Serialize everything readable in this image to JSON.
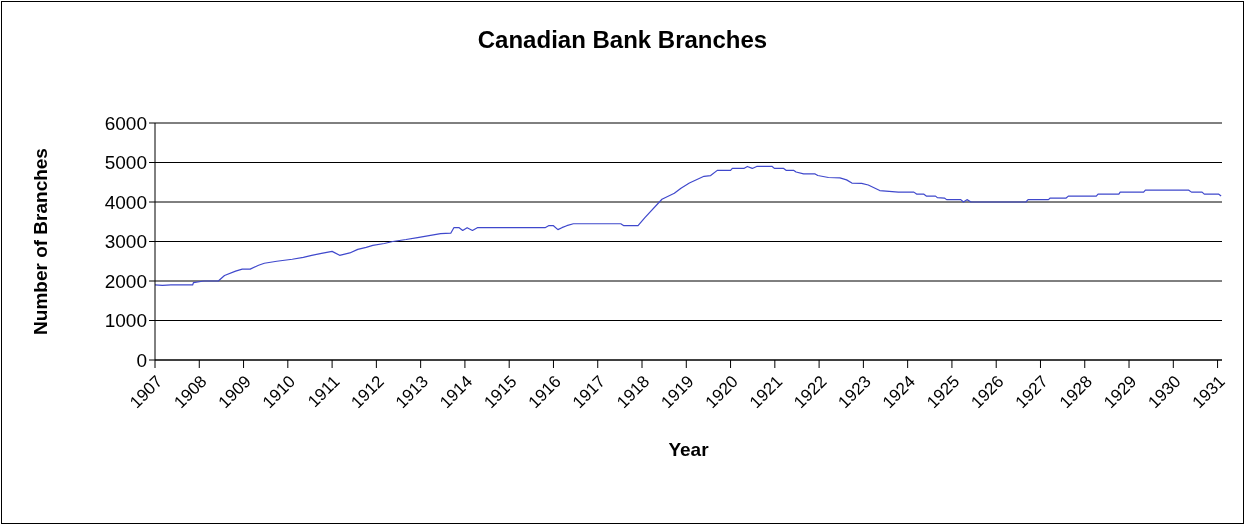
{
  "chart_data": {
    "type": "line",
    "title": "Canadian Bank Branches",
    "xlabel": "Year",
    "ylabel": "Number of Branches",
    "x": [
      1907,
      1907.17,
      1907.36,
      1907.85,
      1907.87,
      1908.1,
      1908.43,
      1908.57,
      1908.82,
      1908.97,
      1909.15,
      1909.34,
      1909.47,
      1909.75,
      1910.1,
      1910.35,
      1910.54,
      1910.76,
      1911.0,
      1911.17,
      1911.4,
      1911.58,
      1911.77,
      1911.92,
      1912.18,
      1912.37,
      1912.67,
      1912.93,
      1913.19,
      1913.45,
      1913.68,
      1913.75,
      1913.87,
      1913.95,
      1914.05,
      1914.17,
      1914.28,
      1915.81,
      1915.89,
      1916.0,
      1916.1,
      1916.19,
      1916.3,
      1916.45,
      1917.52,
      1917.59,
      1917.91,
      1918.06,
      1918.45,
      1918.73,
      1918.88,
      1919.07,
      1919.4,
      1919.55,
      1919.7,
      1920.0,
      1920.04,
      1920.3,
      1920.38,
      1920.49,
      1920.59,
      1920.94,
      1920.99,
      1921.2,
      1921.26,
      1921.43,
      1921.48,
      1921.65,
      1921.91,
      1921.97,
      1922.21,
      1922.47,
      1922.62,
      1922.74,
      1922.96,
      1923.11,
      1923.37,
      1923.79,
      1924.14,
      1924.2,
      1924.36,
      1924.42,
      1924.63,
      1924.67,
      1924.83,
      1924.88,
      1925.2,
      1925.26,
      1925.34,
      1925.43,
      1926.67,
      1926.72,
      1927.18,
      1927.22,
      1927.58,
      1927.63,
      1928.26,
      1928.3,
      1928.77,
      1928.8,
      1929.33,
      1929.37,
      1930.35,
      1930.41,
      1930.65,
      1930.7,
      1931.02,
      1931.08
    ],
    "series": [
      {
        "color": "#3f48cc",
        "values": [
          1900,
          1890,
          1900,
          1900,
          1960,
          2000,
          2000,
          2140,
          2250,
          2300,
          2300,
          2400,
          2450,
          2500,
          2550,
          2600,
          2650,
          2700,
          2750,
          2650,
          2710,
          2800,
          2850,
          2900,
          2950,
          3000,
          3050,
          3100,
          3150,
          3200,
          3210,
          3350,
          3350,
          3280,
          3350,
          3280,
          3350,
          3350,
          3400,
          3400,
          3300,
          3350,
          3400,
          3450,
          3450,
          3400,
          3400,
          3600,
          4070,
          4220,
          4350,
          4480,
          4650,
          4670,
          4800,
          4800,
          4850,
          4850,
          4900,
          4850,
          4900,
          4900,
          4850,
          4850,
          4800,
          4800,
          4760,
          4710,
          4710,
          4670,
          4620,
          4610,
          4560,
          4480,
          4470,
          4430,
          4290,
          4250,
          4250,
          4200,
          4200,
          4150,
          4150,
          4110,
          4100,
          4060,
          4060,
          4000,
          4060,
          4000,
          4000,
          4060,
          4060,
          4100,
          4100,
          4150,
          4150,
          4200,
          4200,
          4250,
          4250,
          4300,
          4300,
          4250,
          4250,
          4200,
          4200,
          4150
        ]
      }
    ],
    "xlim": [
      1907,
      1931.1
    ],
    "xticks": [
      1907,
      1908,
      1909,
      1910,
      1911,
      1912,
      1913,
      1914,
      1915,
      1916,
      1917,
      1918,
      1919,
      1920,
      1921,
      1922,
      1923,
      1924,
      1925,
      1926,
      1927,
      1928,
      1929,
      1930,
      1931
    ],
    "ylim": [
      0,
      6000
    ],
    "yticks": [
      0,
      1000,
      2000,
      3000,
      4000,
      5000,
      6000
    ],
    "grid": "y"
  }
}
